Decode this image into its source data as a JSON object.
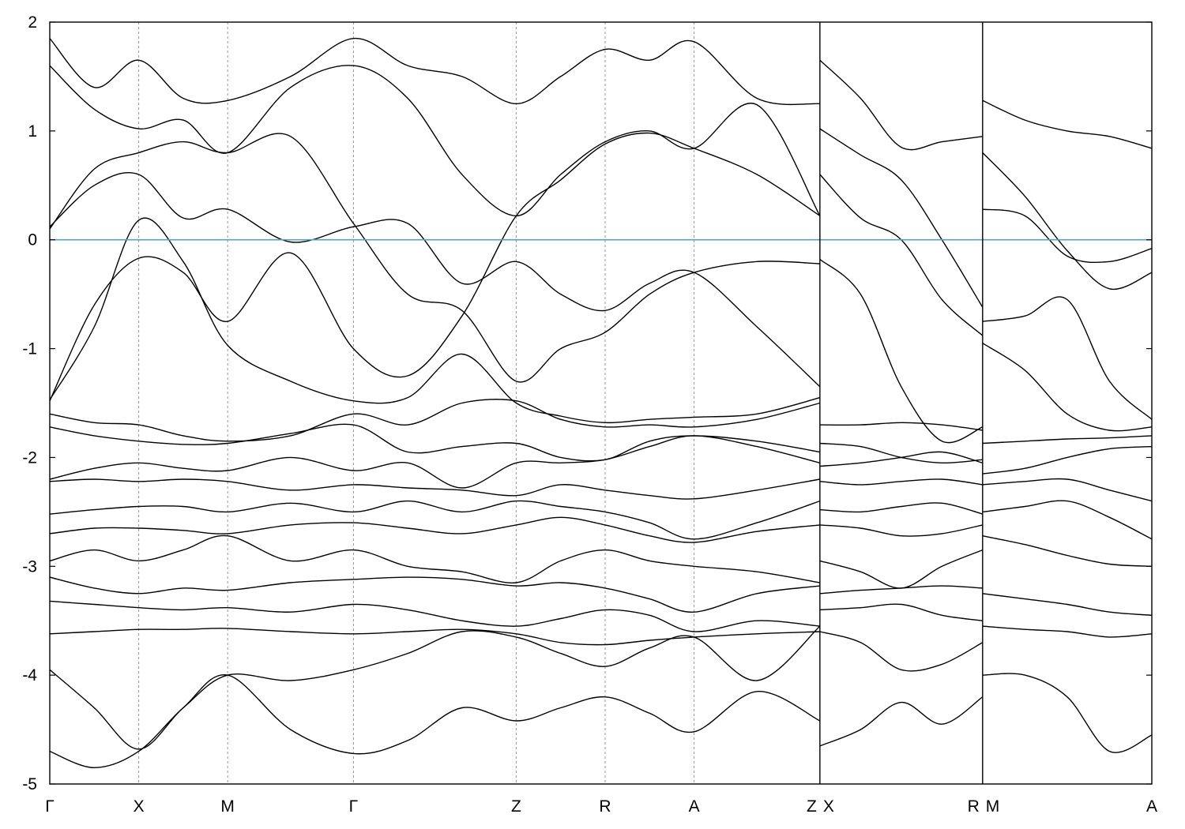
{
  "chart_data": {
    "type": "line",
    "title": "",
    "xlabel": "",
    "ylabel": "",
    "ylim": [
      -5,
      2
    ],
    "xlim": [
      0,
      10.16
    ],
    "yticks": [
      "2",
      "1",
      "0",
      "-1",
      "-2",
      "-3",
      "-4",
      "-5"
    ],
    "ytick_values": [
      2,
      1,
      0,
      -1,
      -2,
      -3,
      -4,
      -5
    ],
    "kpoints": [
      {
        "label": "Γ",
        "x": 0.0
      },
      {
        "label": "X",
        "x": 0.82
      },
      {
        "label": "M",
        "x": 1.64
      },
      {
        "label": "Γ",
        "x": 2.8
      },
      {
        "label": "Z",
        "x": 4.3
      },
      {
        "label": "R",
        "x": 5.12
      },
      {
        "label": "A",
        "x": 5.94
      },
      {
        "label": "Z",
        "x": 7.1
      },
      {
        "label": "X",
        "x": 7.1
      },
      {
        "label": "R",
        "x": 8.6
      },
      {
        "label": "M",
        "x": 8.6
      },
      {
        "label": "A",
        "x": 10.16
      }
    ],
    "segment_breaks": [
      7.1,
      8.6
    ],
    "fermi_level": 0,
    "fermi_color": "#4aa8c0",
    "line_color": "#000000",
    "grid": false,
    "series": [
      {
        "x": [
          0.0,
          0.41,
          0.82,
          1.23,
          1.64,
          2.22,
          2.8,
          3.3,
          3.8,
          4.3,
          4.71,
          5.12,
          5.53,
          5.94,
          6.52,
          7.1
        ],
        "y": [
          0.12,
          0.5,
          0.6,
          0.2,
          0.28,
          -0.02,
          0.12,
          0.15,
          -0.4,
          -0.2,
          -0.5,
          -0.65,
          -0.4,
          -0.3,
          -0.8,
          -1.35
        ]
      },
      {
        "x": [
          0.0,
          0.41,
          0.82,
          1.23,
          1.64,
          2.22,
          2.8,
          3.3,
          3.8,
          4.3,
          4.71,
          5.12,
          5.53,
          5.94,
          6.52,
          7.1
        ],
        "y": [
          0.1,
          0.65,
          0.8,
          0.9,
          0.8,
          0.95,
          0.15,
          -0.5,
          -0.65,
          -1.3,
          -1.0,
          -0.85,
          -0.5,
          -0.3,
          -0.2,
          -0.22
        ]
      },
      {
        "x": [
          0.0,
          0.41,
          0.82,
          1.23,
          1.64,
          2.22,
          2.8,
          3.3,
          3.8,
          4.3,
          4.71,
          5.12,
          5.53,
          5.94,
          6.52,
          7.1
        ],
        "y": [
          -1.48,
          -0.6,
          -0.17,
          -0.3,
          -0.75,
          -0.12,
          -1.0,
          -1.25,
          -0.7,
          0.22,
          0.55,
          0.88,
          0.98,
          0.84,
          0.6,
          0.22
        ]
      },
      {
        "x": [
          0.0,
          0.41,
          0.82,
          1.23,
          1.64,
          2.22,
          2.8,
          3.3,
          3.8,
          4.3,
          4.71,
          5.12,
          5.53,
          5.94,
          6.52,
          7.1
        ],
        "y": [
          -1.47,
          -0.8,
          0.18,
          -0.2,
          -0.97,
          -1.3,
          -1.48,
          -1.45,
          -1.05,
          -1.5,
          -1.62,
          -1.68,
          -1.65,
          -1.63,
          -1.6,
          -1.45
        ]
      },
      {
        "x": [
          0.0,
          0.41,
          0.82,
          1.23,
          1.64,
          2.22,
          2.8,
          3.3,
          3.8,
          4.3,
          4.71,
          5.12,
          5.53,
          5.94,
          6.52,
          7.1
        ],
        "y": [
          1.6,
          1.2,
          1.02,
          1.1,
          0.8,
          1.4,
          1.6,
          1.3,
          0.6,
          0.22,
          0.6,
          0.9,
          1.0,
          0.84,
          1.24,
          0.22
        ]
      },
      {
        "x": [
          0.0,
          0.41,
          0.82,
          1.23,
          1.64,
          2.22,
          2.8,
          3.3,
          3.8,
          4.3,
          4.71,
          5.12,
          5.53,
          5.94,
          6.52,
          7.1
        ],
        "y": [
          1.85,
          1.4,
          1.65,
          1.3,
          1.28,
          1.5,
          1.85,
          1.6,
          1.5,
          1.25,
          1.5,
          1.75,
          1.65,
          1.82,
          1.3,
          1.25
        ]
      },
      {
        "x": [
          0.0,
          0.41,
          0.82,
          1.23,
          1.64,
          2.22,
          2.8,
          3.3,
          3.8,
          4.3,
          4.71,
          5.12,
          5.53,
          5.94,
          6.52,
          7.1
        ],
        "y": [
          -1.6,
          -1.68,
          -1.7,
          -1.8,
          -1.85,
          -1.8,
          -1.6,
          -1.7,
          -1.5,
          -1.48,
          -1.65,
          -1.72,
          -1.7,
          -1.72,
          -1.65,
          -1.5
        ]
      },
      {
        "x": [
          0.0,
          0.41,
          0.82,
          1.23,
          1.64,
          2.22,
          2.8,
          3.3,
          3.8,
          4.3,
          4.71,
          5.12,
          5.53,
          5.94,
          6.52,
          7.1
        ],
        "y": [
          -1.72,
          -1.8,
          -1.85,
          -1.88,
          -1.87,
          -1.78,
          -1.7,
          -1.95,
          -1.9,
          -1.87,
          -2.0,
          -2.02,
          -1.85,
          -1.8,
          -1.85,
          -1.95
        ]
      },
      {
        "x": [
          0.0,
          0.41,
          0.82,
          1.23,
          1.64,
          2.22,
          2.8,
          3.3,
          3.8,
          4.3,
          4.71,
          5.12,
          5.53,
          5.94,
          6.52,
          7.1
        ],
        "y": [
          -2.2,
          -2.1,
          -2.05,
          -2.1,
          -2.12,
          -2.0,
          -2.12,
          -2.05,
          -2.28,
          -2.05,
          -2.05,
          -2.02,
          -1.9,
          -1.8,
          -1.9,
          -2.05
        ]
      },
      {
        "x": [
          0.0,
          0.41,
          0.82,
          1.23,
          1.64,
          2.22,
          2.8,
          3.3,
          3.8,
          4.3,
          4.71,
          5.12,
          5.53,
          5.94,
          6.52,
          7.1
        ],
        "y": [
          -2.22,
          -2.2,
          -2.22,
          -2.2,
          -2.22,
          -2.3,
          -2.25,
          -2.28,
          -2.3,
          -2.35,
          -2.25,
          -2.3,
          -2.35,
          -2.38,
          -2.3,
          -2.2
        ]
      },
      {
        "x": [
          0.0,
          0.41,
          0.82,
          1.23,
          1.64,
          2.22,
          2.8,
          3.3,
          3.8,
          4.3,
          4.71,
          5.12,
          5.53,
          5.94,
          6.52,
          7.1
        ],
        "y": [
          -2.52,
          -2.48,
          -2.45,
          -2.45,
          -2.5,
          -2.42,
          -2.5,
          -2.4,
          -2.5,
          -2.4,
          -2.45,
          -2.5,
          -2.6,
          -2.75,
          -2.6,
          -2.4
        ]
      },
      {
        "x": [
          0.0,
          0.41,
          0.82,
          1.23,
          1.64,
          2.22,
          2.8,
          3.3,
          3.8,
          4.3,
          4.71,
          5.12,
          5.53,
          5.94,
          6.52,
          7.1
        ],
        "y": [
          -2.7,
          -2.65,
          -2.65,
          -2.67,
          -2.7,
          -2.62,
          -2.6,
          -2.65,
          -2.7,
          -2.62,
          -2.55,
          -2.62,
          -2.72,
          -2.78,
          -2.68,
          -2.62
        ]
      },
      {
        "x": [
          0.0,
          0.41,
          0.82,
          1.23,
          1.64,
          2.22,
          2.8,
          3.3,
          3.8,
          4.3,
          4.71,
          5.12,
          5.53,
          5.94,
          6.52,
          7.1
        ],
        "y": [
          -2.95,
          -2.85,
          -2.95,
          -2.85,
          -2.72,
          -2.95,
          -2.85,
          -3.0,
          -3.05,
          -3.15,
          -2.95,
          -2.85,
          -2.95,
          -3.0,
          -3.05,
          -3.15
        ]
      },
      {
        "x": [
          0.0,
          0.41,
          0.82,
          1.23,
          1.64,
          2.22,
          2.8,
          3.3,
          3.8,
          4.3,
          4.71,
          5.12,
          5.53,
          5.94,
          6.52,
          7.1
        ],
        "y": [
          -3.1,
          -3.2,
          -3.25,
          -3.2,
          -3.22,
          -3.15,
          -3.12,
          -3.1,
          -3.12,
          -3.18,
          -3.15,
          -3.2,
          -3.3,
          -3.42,
          -3.25,
          -3.18
        ]
      },
      {
        "x": [
          0.0,
          0.41,
          0.82,
          1.23,
          1.64,
          2.22,
          2.8,
          3.3,
          3.8,
          4.3,
          4.71,
          5.12,
          5.53,
          5.94,
          6.52,
          7.1
        ],
        "y": [
          -3.32,
          -3.35,
          -3.38,
          -3.4,
          -3.38,
          -3.42,
          -3.35,
          -3.4,
          -3.5,
          -3.55,
          -3.48,
          -3.4,
          -3.45,
          -3.6,
          -3.5,
          -3.55
        ]
      },
      {
        "x": [
          0.0,
          0.41,
          0.82,
          1.23,
          1.64,
          2.22,
          2.8,
          3.3,
          3.8,
          4.3,
          4.71,
          5.12,
          5.53,
          5.94,
          6.52,
          7.1
        ],
        "y": [
          -3.62,
          -3.6,
          -3.58,
          -3.58,
          -3.57,
          -3.6,
          -3.62,
          -3.6,
          -3.58,
          -3.62,
          -3.7,
          -3.72,
          -3.68,
          -3.65,
          -3.62,
          -3.6
        ]
      },
      {
        "x": [
          0.0,
          0.41,
          0.82,
          1.23,
          1.64,
          2.22,
          2.8,
          3.3,
          3.8,
          4.3,
          4.71,
          5.12,
          5.53,
          5.94,
          6.52,
          7.1
        ],
        "y": [
          -3.95,
          -4.3,
          -4.68,
          -4.3,
          -4.0,
          -4.05,
          -3.95,
          -3.8,
          -3.6,
          -3.65,
          -3.8,
          -3.92,
          -3.75,
          -3.65,
          -4.05,
          -3.55
        ]
      },
      {
        "x": [
          0.0,
          0.41,
          0.82,
          1.23,
          1.64,
          2.22,
          2.8,
          3.3,
          3.8,
          4.3,
          4.71,
          5.12,
          5.53,
          5.94,
          6.52,
          7.1
        ],
        "y": [
          -4.7,
          -4.85,
          -4.7,
          -4.3,
          -4.0,
          -4.5,
          -4.72,
          -4.6,
          -4.3,
          -4.42,
          -4.3,
          -4.2,
          -4.35,
          -4.52,
          -4.15,
          -4.42
        ]
      },
      {
        "x": [
          7.1,
          7.475,
          7.85,
          8.225,
          8.6
        ],
        "y": [
          1.65,
          1.3,
          0.85,
          0.9,
          0.95
        ]
      },
      {
        "x": [
          7.1,
          7.475,
          7.85,
          8.225,
          8.6
        ],
        "y": [
          1.02,
          0.78,
          0.55,
          0.0,
          -0.62
        ]
      },
      {
        "x": [
          7.1,
          7.475,
          7.85,
          8.225,
          8.6
        ],
        "y": [
          0.6,
          0.2,
          0.0,
          -0.55,
          -0.88
        ]
      },
      {
        "x": [
          7.1,
          7.475,
          7.85,
          8.225,
          8.6
        ],
        "y": [
          -0.18,
          -0.5,
          -1.35,
          -1.85,
          -1.72
        ]
      },
      {
        "x": [
          7.1,
          7.475,
          7.85,
          8.225,
          8.6
        ],
        "y": [
          -1.7,
          -1.7,
          -1.68,
          -1.7,
          -1.75
        ]
      },
      {
        "x": [
          7.1,
          7.475,
          7.85,
          8.225,
          8.6
        ],
        "y": [
          -1.87,
          -1.9,
          -2.0,
          -2.05,
          -2.02
        ]
      },
      {
        "x": [
          7.1,
          7.475,
          7.85,
          8.225,
          8.6
        ],
        "y": [
          -2.08,
          -2.05,
          -2.0,
          -1.95,
          -2.05
        ]
      },
      {
        "x": [
          7.1,
          7.475,
          7.85,
          8.225,
          8.6
        ],
        "y": [
          -2.22,
          -2.25,
          -2.22,
          -2.2,
          -2.25
        ]
      },
      {
        "x": [
          7.1,
          7.475,
          7.85,
          8.225,
          8.6
        ],
        "y": [
          -2.48,
          -2.5,
          -2.45,
          -2.42,
          -2.52
        ]
      },
      {
        "x": [
          7.1,
          7.475,
          7.85,
          8.225,
          8.6
        ],
        "y": [
          -2.62,
          -2.65,
          -2.72,
          -2.7,
          -2.62
        ]
      },
      {
        "x": [
          7.1,
          7.475,
          7.85,
          8.225,
          8.6
        ],
        "y": [
          -2.95,
          -3.05,
          -3.2,
          -3.0,
          -2.85
        ]
      },
      {
        "x": [
          7.1,
          7.475,
          7.85,
          8.225,
          8.6
        ],
        "y": [
          -3.25,
          -3.22,
          -3.2,
          -3.18,
          -3.2
        ]
      },
      {
        "x": [
          7.1,
          7.475,
          7.85,
          8.225,
          8.6
        ],
        "y": [
          -3.4,
          -3.38,
          -3.35,
          -3.45,
          -3.5
        ]
      },
      {
        "x": [
          7.1,
          7.475,
          7.85,
          8.225,
          8.6
        ],
        "y": [
          -3.6,
          -3.7,
          -3.95,
          -3.9,
          -3.7
        ]
      },
      {
        "x": [
          7.1,
          7.475,
          7.85,
          8.225,
          8.6
        ],
        "y": [
          -4.65,
          -4.5,
          -4.25,
          -4.45,
          -4.2
        ]
      },
      {
        "x": [
          8.6,
          8.99,
          9.38,
          9.77,
          10.16
        ],
        "y": [
          1.28,
          1.1,
          1.0,
          0.95,
          0.84
        ]
      },
      {
        "x": [
          8.6,
          8.99,
          9.38,
          9.77,
          10.16
        ],
        "y": [
          0.8,
          0.4,
          -0.1,
          -0.45,
          -0.3
        ]
      },
      {
        "x": [
          8.6,
          8.99,
          9.38,
          9.77,
          10.16
        ],
        "y": [
          0.28,
          0.22,
          -0.15,
          -0.2,
          -0.08
        ]
      },
      {
        "x": [
          8.6,
          8.99,
          9.38,
          9.77,
          10.16
        ],
        "y": [
          -0.75,
          -0.7,
          -0.55,
          -1.3,
          -1.65
        ]
      },
      {
        "x": [
          8.6,
          8.99,
          9.38,
          9.77,
          10.16
        ],
        "y": [
          -0.95,
          -1.2,
          -1.6,
          -1.75,
          -1.72
        ]
      },
      {
        "x": [
          8.6,
          8.99,
          9.38,
          9.77,
          10.16
        ],
        "y": [
          -1.87,
          -1.85,
          -1.83,
          -1.82,
          -1.8
        ]
      },
      {
        "x": [
          8.6,
          8.99,
          9.38,
          9.77,
          10.16
        ],
        "y": [
          -2.15,
          -2.1,
          -2.0,
          -1.92,
          -1.9
        ]
      },
      {
        "x": [
          8.6,
          8.99,
          9.38,
          9.77,
          10.16
        ],
        "y": [
          -2.25,
          -2.22,
          -2.2,
          -2.3,
          -2.4
        ]
      },
      {
        "x": [
          8.6,
          8.99,
          9.38,
          9.77,
          10.16
        ],
        "y": [
          -2.5,
          -2.45,
          -2.4,
          -2.55,
          -2.75
        ]
      },
      {
        "x": [
          8.6,
          8.99,
          9.38,
          9.77,
          10.16
        ],
        "y": [
          -2.72,
          -2.8,
          -2.9,
          -2.98,
          -3.0
        ]
      },
      {
        "x": [
          8.6,
          8.99,
          9.38,
          9.77,
          10.16
        ],
        "y": [
          -3.25,
          -3.3,
          -3.35,
          -3.42,
          -3.45
        ]
      },
      {
        "x": [
          8.6,
          8.99,
          9.38,
          9.77,
          10.16
        ],
        "y": [
          -3.55,
          -3.58,
          -3.6,
          -3.65,
          -3.62
        ]
      },
      {
        "x": [
          8.6,
          8.99,
          9.38,
          9.77,
          10.16
        ],
        "y": [
          -4.0,
          -4.0,
          -4.2,
          -4.7,
          -4.55
        ]
      }
    ]
  }
}
